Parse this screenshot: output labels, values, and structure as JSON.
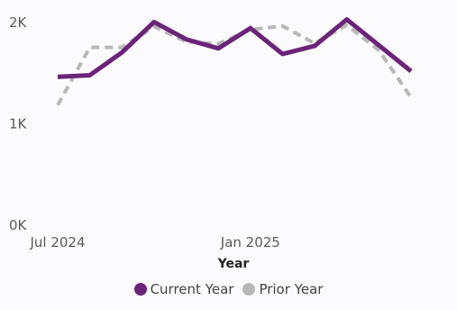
{
  "chart_data": {
    "type": "line",
    "xlabel": "Year",
    "ylabel": "",
    "ylim": [
      0,
      2000
    ],
    "y_ticks": [
      0,
      1000,
      2000
    ],
    "y_tick_labels": [
      "0K",
      "1K",
      "2K"
    ],
    "x": [
      "Jul 2024",
      "Aug 2024",
      "Sep 2024",
      "Oct 2024",
      "Nov 2024",
      "Dec 2024",
      "Jan 2025",
      "Feb 2025",
      "Mar 2025",
      "Apr 2025",
      "May 2025",
      "Jun 2025"
    ],
    "x_tick_labels": [
      "Jul 2024",
      "Jan 2025"
    ],
    "grid": false,
    "legend_position": "bottom-center",
    "series": [
      {
        "name": "Current Year",
        "color": "#6b2479",
        "style": "solid",
        "values": [
          1465,
          1480,
          1705,
          2005,
          1835,
          1745,
          1945,
          1690,
          1770,
          2030,
          1775,
          1520
        ]
      },
      {
        "name": "Prior Year",
        "color": "#b8b8b8",
        "style": "dashed",
        "values": [
          1185,
          1755,
          1755,
          1960,
          1810,
          1790,
          1930,
          1965,
          1795,
          1975,
          1725,
          1260
        ]
      }
    ]
  }
}
